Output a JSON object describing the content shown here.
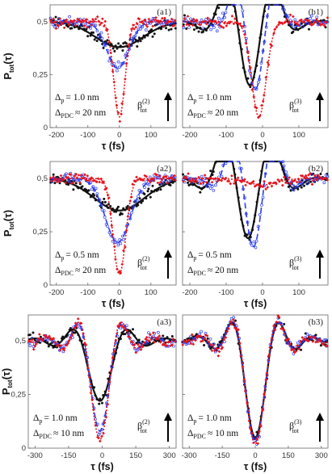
{
  "colors": {
    "black": "#111111",
    "blue": "#2b3cf0",
    "red": "#e8141c",
    "frame": "#666666"
  },
  "labels": {
    "ylabel_main": "P",
    "ylabel_sub": "tot",
    "ylabel_arg": "(τ)",
    "xlabel_main": "τ (fs)",
    "delta_p": "Δ",
    "delta_pdc": "Δ",
    "sub_p": "p",
    "sub_pdc": "PDC",
    "beta": "β",
    "beta_sub": "tot",
    "beta2_sup": "(2)",
    "beta3_sup": "(3)"
  },
  "chart_data": [
    {
      "panel": "(a1)",
      "type": "scatter",
      "xlim": [
        -220,
        180
      ],
      "ylim": [
        0,
        0.58
      ],
      "x_ticks": [
        -200,
        -100,
        0,
        100
      ],
      "y_ticks": [
        0.5,
        0.25,
        0
      ],
      "y_tick_labels": [
        "0,5",
        "0,25",
        "0"
      ],
      "dp": "= 1.0 nm",
      "dpdc": "≈ 20 nm",
      "beta": "(2)",
      "series": [
        {
          "color": "black",
          "kind": "gauss",
          "base": 0.5,
          "dip": 0.12,
          "center": 0,
          "width": 75
        },
        {
          "color": "blue",
          "kind": "gauss",
          "base": 0.5,
          "dip": 0.22,
          "center": -5,
          "width": 35
        },
        {
          "color": "red",
          "kind": "gauss",
          "base": 0.5,
          "dip": 0.45,
          "center": 0,
          "width": 18
        }
      ]
    },
    {
      "panel": "(b1)",
      "type": "scatter",
      "xlim": [
        -220,
        180
      ],
      "ylim": [
        0,
        0.58
      ],
      "x_ticks": [
        -200,
        -100,
        0,
        100
      ],
      "y_ticks": [
        0.5,
        0.25,
        0
      ],
      "dp": "= 1.0 nm",
      "dpdc": "≈ 20 nm",
      "beta": "(3)",
      "series": [
        {
          "color": "black",
          "kind": "osc",
          "base": 0.5,
          "center": -35,
          "amp": 0.3,
          "width": 65,
          "freq": 0.045
        },
        {
          "color": "blue",
          "kind": "osc",
          "base": 0.5,
          "center": -20,
          "amp": 0.32,
          "width": 50,
          "freq": 0.05
        },
        {
          "color": "red",
          "kind": "gauss",
          "base": 0.5,
          "dip": 0.45,
          "center": -10,
          "width": 20
        }
      ]
    },
    {
      "panel": "(a2)",
      "type": "scatter",
      "xlim": [
        -220,
        180
      ],
      "ylim": [
        0,
        0.58
      ],
      "x_ticks": [
        -200,
        -100,
        0,
        100
      ],
      "y_ticks": [
        0.5,
        0.25,
        0
      ],
      "dp": "= 0.5 nm",
      "dpdc": "≈ 20 nm",
      "beta": "(2)",
      "series": [
        {
          "color": "black",
          "kind": "gauss",
          "base": 0.5,
          "dip": 0.15,
          "center": 0,
          "width": 80
        },
        {
          "color": "blue",
          "kind": "gauss",
          "base": 0.5,
          "dip": 0.3,
          "center": -5,
          "width": 40
        },
        {
          "color": "red",
          "kind": "gauss",
          "base": 0.5,
          "dip": 0.45,
          "center": 0,
          "width": 20
        }
      ]
    },
    {
      "panel": "(b2)",
      "type": "scatter",
      "xlim": [
        -220,
        180
      ],
      "ylim": [
        0,
        0.58
      ],
      "x_ticks": [
        -200,
        -100,
        0,
        100
      ],
      "y_ticks": [
        0.5,
        0.25,
        0
      ],
      "dp": "= 0.5 nm",
      "dpdc": "≈ 20 nm",
      "beta": "(3)",
      "series": [
        {
          "color": "black",
          "kind": "osc",
          "base": 0.5,
          "center": -40,
          "amp": 0.28,
          "width": 70,
          "freq": 0.045
        },
        {
          "color": "blue",
          "kind": "osc",
          "base": 0.5,
          "center": -25,
          "amp": 0.32,
          "width": 55,
          "freq": 0.05
        },
        {
          "color": "red",
          "kind": "gauss",
          "base": 0.5,
          "dip": 0.03,
          "center": 0,
          "width": 40
        }
      ]
    },
    {
      "panel": "(a3)",
      "type": "scatter",
      "xlim": [
        -330,
        330
      ],
      "ylim": [
        0,
        0.62
      ],
      "x_ticks": [
        -300,
        -150,
        0,
        150,
        300
      ],
      "y_ticks": [
        0.5,
        0.25,
        0
      ],
      "dp": "= 1.0 nm",
      "dpdc": "≈ 10 nm",
      "beta": "(2)",
      "series": [
        {
          "color": "black",
          "kind": "sinc",
          "base": 0.5,
          "dip": 0.28,
          "center": -10,
          "width": 85
        },
        {
          "color": "blue",
          "kind": "sinc",
          "base": 0.5,
          "dip": 0.42,
          "center": -10,
          "width": 70
        },
        {
          "color": "red",
          "kind": "sinc",
          "base": 0.5,
          "dip": 0.46,
          "center": -10,
          "width": 68
        }
      ]
    },
    {
      "panel": "(b3)",
      "type": "scatter",
      "xlim": [
        -330,
        330
      ],
      "ylim": [
        0,
        0.62
      ],
      "x_ticks": [
        -300,
        -150,
        0,
        150,
        300
      ],
      "y_ticks": [
        0.5,
        0.25,
        0
      ],
      "dp": "= 1.0 nm",
      "dpdc": "≈ 10 nm",
      "beta": "(3)",
      "series": [
        {
          "color": "black",
          "kind": "sinc",
          "base": 0.5,
          "dip": 0.45,
          "center": 0,
          "width": 75
        },
        {
          "color": "blue",
          "kind": "sinc",
          "base": 0.5,
          "dip": 0.47,
          "center": 0,
          "width": 73
        },
        {
          "color": "red",
          "kind": "sinc",
          "base": 0.5,
          "dip": 0.48,
          "center": 0,
          "width": 72
        }
      ]
    }
  ]
}
